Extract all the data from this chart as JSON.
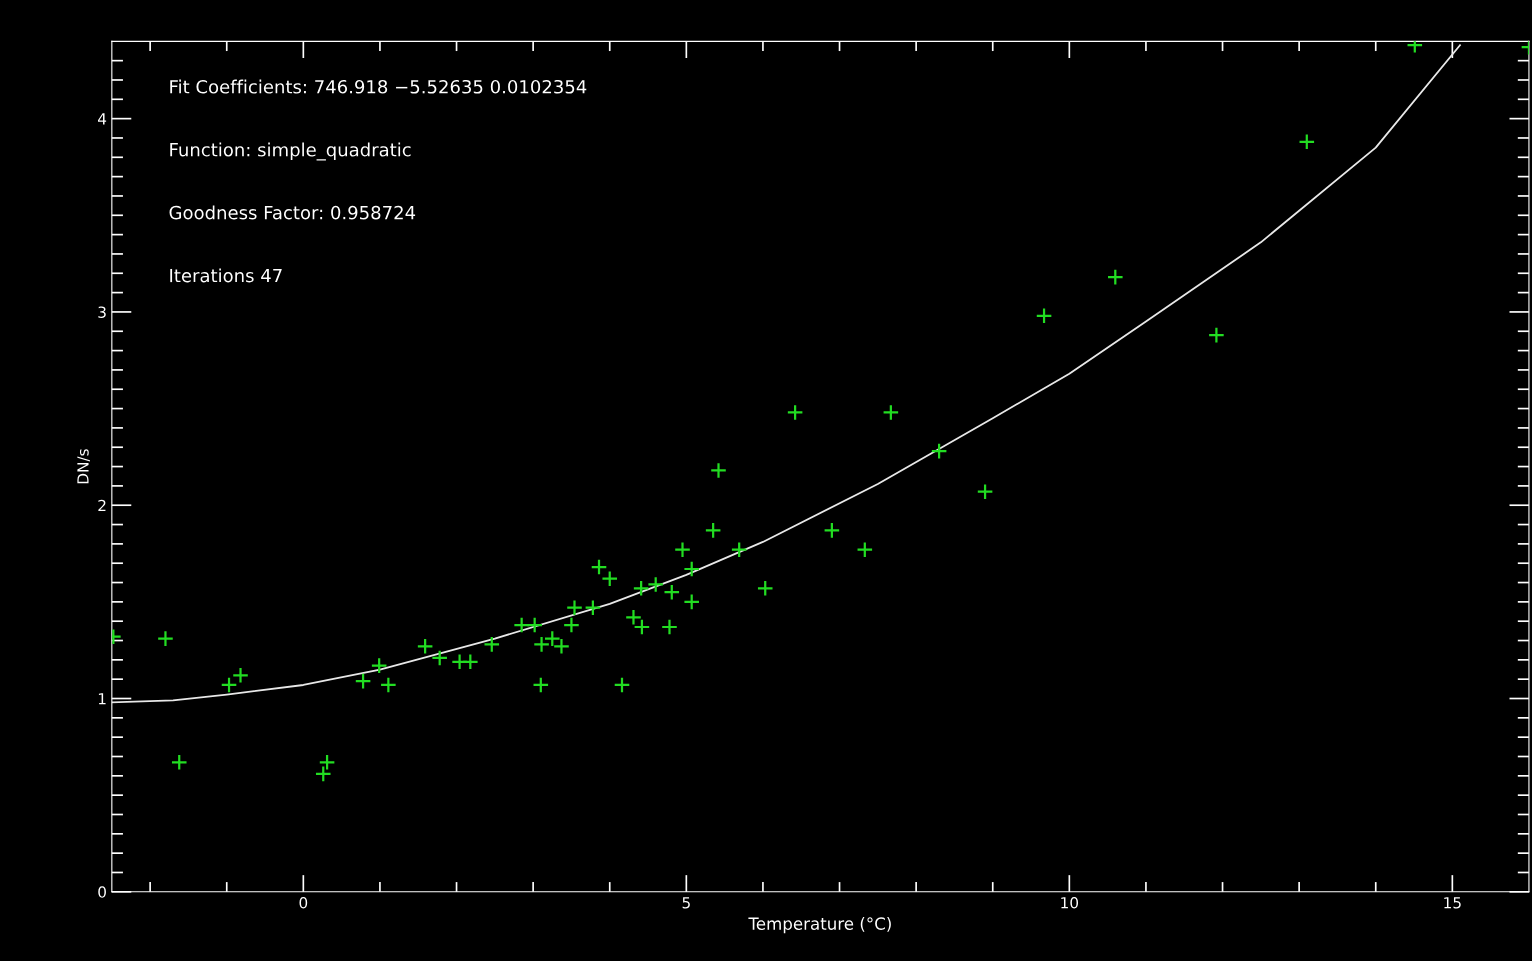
{
  "chart_data": {
    "type": "scatter",
    "xlabel": "Temperature (°C)",
    "ylabel": "DN/s",
    "annotations": [
      "Fit Coefficients: 746.918 −5.52635 0.0102354",
      "Function: simple_quadratic",
      "Goodness Factor: 0.958724",
      "Iterations 47"
    ],
    "xlim": [
      -2.5,
      16
    ],
    "ylim": [
      0,
      4.4
    ],
    "xticks": [
      {
        "value": -2,
        "label": null
      },
      {
        "value": -1,
        "label": null
      },
      0,
      {
        "value": 1,
        "label": null
      },
      {
        "value": 2,
        "label": null
      },
      {
        "value": 3,
        "label": null
      },
      {
        "value": 4,
        "label": null
      },
      5,
      {
        "value": 6,
        "label": null
      },
      {
        "value": 7,
        "label": null
      },
      {
        "value": 8,
        "label": null
      },
      {
        "value": 9,
        "label": null
      },
      10,
      {
        "value": 11,
        "label": null
      },
      {
        "value": 12,
        "label": null
      },
      {
        "value": 13,
        "label": null
      },
      {
        "value": 14,
        "label": null
      },
      15
    ],
    "yticks": [
      0,
      {
        "value": 0.1,
        "label": null
      },
      {
        "value": 0.2,
        "label": null
      },
      {
        "value": 0.3,
        "label": null
      },
      {
        "value": 0.4,
        "label": null
      },
      {
        "value": 0.5,
        "label": null
      },
      {
        "value": 0.6,
        "label": null
      },
      {
        "value": 0.7,
        "label": null
      },
      {
        "value": 0.8,
        "label": null
      },
      {
        "value": 0.9,
        "label": null
      },
      1,
      {
        "value": 1.1,
        "label": null
      },
      {
        "value": 1.2,
        "label": null
      },
      {
        "value": 1.3,
        "label": null
      },
      {
        "value": 1.4,
        "label": null
      },
      {
        "value": 1.5,
        "label": null
      },
      {
        "value": 1.6,
        "label": null
      },
      {
        "value": 1.7,
        "label": null
      },
      {
        "value": 1.8,
        "label": null
      },
      {
        "value": 1.9,
        "label": null
      },
      2,
      {
        "value": 2.1,
        "label": null
      },
      {
        "value": 2.2,
        "label": null
      },
      {
        "value": 2.3,
        "label": null
      },
      {
        "value": 2.4,
        "label": null
      },
      {
        "value": 2.5,
        "label": null
      },
      {
        "value": 2.6,
        "label": null
      },
      {
        "value": 2.7,
        "label": null
      },
      {
        "value": 2.8,
        "label": null
      },
      {
        "value": 2.9,
        "label": null
      },
      3,
      {
        "value": 3.1,
        "label": null
      },
      {
        "value": 3.2,
        "label": null
      },
      {
        "value": 3.3,
        "label": null
      },
      {
        "value": 3.4,
        "label": null
      },
      {
        "value": 3.5,
        "label": null
      },
      {
        "value": 3.6,
        "label": null
      },
      {
        "value": 3.7,
        "label": null
      },
      {
        "value": 3.8,
        "label": null
      },
      {
        "value": 3.9,
        "label": null
      },
      4,
      {
        "value": 4.1,
        "label": null
      },
      {
        "value": 4.2,
        "label": null
      },
      {
        "value": 4.3,
        "label": null
      }
    ],
    "marker": "cross",
    "grid": false,
    "series": [
      {
        "color": "#22dd22",
        "x": [
          -2.48,
          -1.8,
          -1.62,
          -0.97,
          -0.82,
          0.26,
          0.31,
          0.78,
          0.99,
          1.11,
          1.59,
          1.78,
          2.04,
          2.18,
          2.46,
          2.85,
          3.02,
          3.1,
          3.11,
          3.25,
          3.37,
          3.5,
          3.54,
          3.78,
          3.86,
          4.0,
          4.16,
          4.31,
          4.41,
          4.42,
          4.6,
          4.78,
          4.81,
          4.95,
          5.07,
          5.07,
          5.35,
          5.42,
          5.69,
          6.03,
          6.42,
          6.9,
          7.33,
          7.67,
          8.3,
          8.9,
          9.67,
          10.6,
          11.92,
          13.1,
          14.51,
          16.0
        ],
        "values": [
          1.32,
          1.31,
          0.67,
          1.07,
          1.12,
          0.61,
          0.67,
          1.09,
          1.17,
          1.07,
          1.27,
          1.21,
          1.19,
          1.19,
          1.28,
          1.38,
          1.38,
          1.07,
          1.28,
          1.31,
          1.27,
          1.38,
          1.47,
          1.47,
          1.68,
          1.62,
          1.07,
          1.42,
          1.57,
          1.37,
          1.59,
          1.37,
          1.55,
          1.77,
          1.67,
          1.5,
          1.87,
          2.18,
          1.77,
          1.57,
          2.48,
          1.87,
          1.77,
          2.48,
          2.28,
          2.07,
          2.98,
          3.18,
          2.88,
          3.88,
          4.38,
          4.37
        ]
      },
      {
        "type": "line",
        "color": "#e8e8e8",
        "marker": "none",
        "x": [
          -2.5,
          -1.7,
          -1.0,
          0,
          1.0,
          2.5,
          4.0,
          5.0,
          6.0,
          7.5,
          9.0,
          10.0,
          11.0,
          12.5,
          14.0,
          15.1
        ],
        "values": [
          0.98,
          0.99,
          1.02,
          1.07,
          1.15,
          1.31,
          1.49,
          1.64,
          1.81,
          2.11,
          2.45,
          2.68,
          2.95,
          3.36,
          3.85,
          4.38
        ]
      }
    ]
  }
}
